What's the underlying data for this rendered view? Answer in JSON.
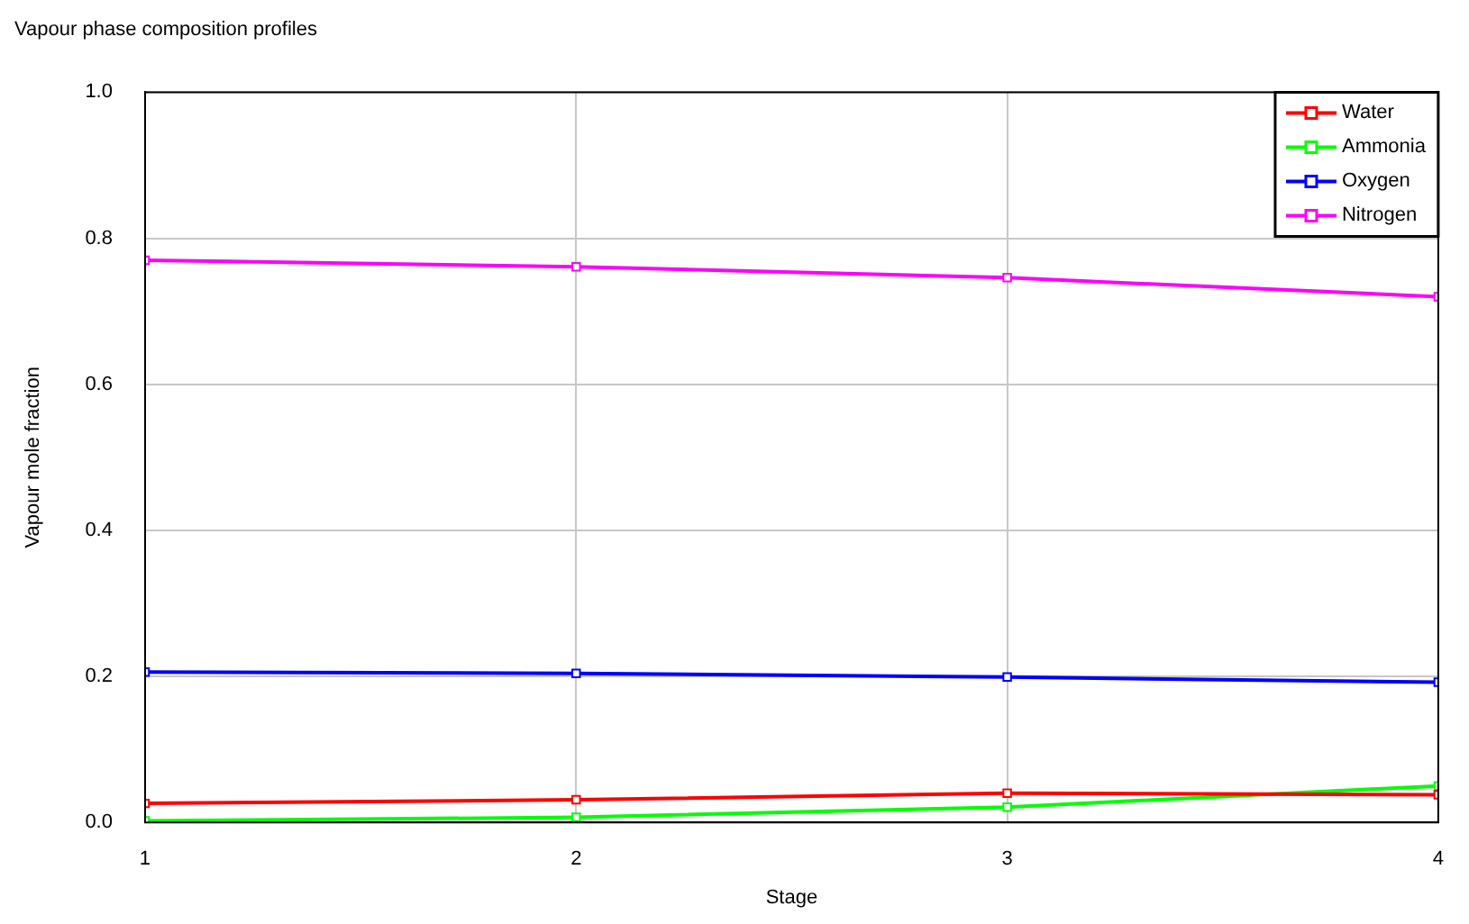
{
  "chart_data": {
    "type": "line",
    "title": "Vapour phase composition profiles",
    "xlabel": "Stage",
    "ylabel": "Vapour mole fraction",
    "x": [
      1,
      2,
      3,
      4
    ],
    "series": [
      {
        "name": "Water",
        "color": "#ff0000",
        "values": [
          0.026,
          0.031,
          0.04,
          0.038
        ]
      },
      {
        "name": "Ammonia",
        "color": "#00ff00",
        "values": [
          0.002,
          0.007,
          0.021,
          0.05
        ]
      },
      {
        "name": "Oxygen",
        "color": "#0000ff",
        "values": [
          0.206,
          0.204,
          0.199,
          0.192
        ]
      },
      {
        "name": "Nitrogen",
        "color": "#ff00ff",
        "values": [
          0.77,
          0.761,
          0.746,
          0.72
        ]
      }
    ],
    "xlim": [
      1,
      4
    ],
    "xticks": [
      1,
      2,
      3,
      4
    ],
    "ylim": [
      0,
      1
    ],
    "yticks": [
      {
        "value": 0,
        "label": "0.0"
      },
      {
        "value": 0.2,
        "label": "0.2"
      },
      {
        "value": 0.4,
        "label": "0.4"
      },
      {
        "value": 0.6,
        "label": "0.6"
      },
      {
        "value": 0.8,
        "label": "0.8"
      },
      {
        "value": 1,
        "label": "1.0"
      }
    ],
    "grid": true,
    "legend": "top right",
    "marker": "square",
    "line_style": "solid"
  }
}
